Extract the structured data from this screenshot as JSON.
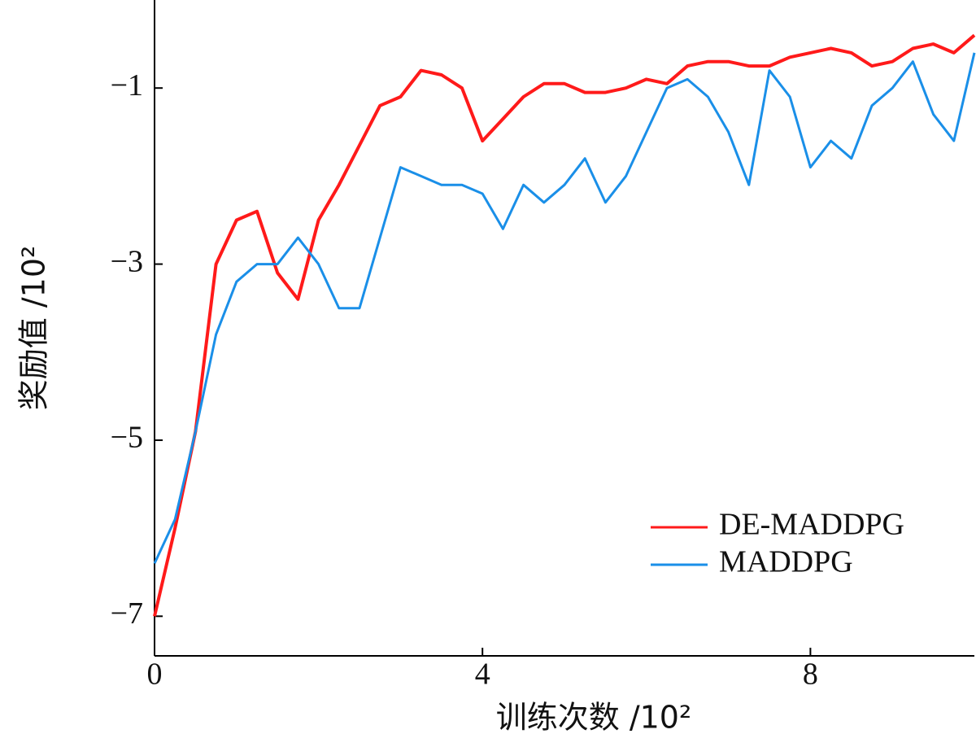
{
  "chart_data": {
    "type": "line",
    "xlabel": "训练次数 /10²",
    "ylabel": "奖励值 /10²",
    "x": [
      0,
      0.25,
      0.5,
      0.75,
      1,
      1.25,
      1.5,
      1.75,
      2,
      2.25,
      2.5,
      2.75,
      3,
      3.25,
      3.5,
      3.75,
      4,
      4.25,
      4.5,
      4.75,
      5,
      5.25,
      5.5,
      5.75,
      6,
      6.25,
      6.5,
      6.75,
      7,
      7.25,
      7.5,
      7.75,
      8,
      8.25,
      8.5,
      8.75,
      9,
      9.25,
      9.5,
      9.75,
      10
    ],
    "series": [
      {
        "name": "DE-MADDPG",
        "color": "#ff1a1a",
        "values": [
          -7.0,
          -6.0,
          -4.9,
          -3.0,
          -2.5,
          -2.4,
          -3.1,
          -3.4,
          -2.5,
          -2.1,
          -1.65,
          -1.2,
          -1.1,
          -0.8,
          -0.85,
          -1.0,
          -1.6,
          -1.35,
          -1.1,
          -0.95,
          -0.95,
          -1.05,
          -1.05,
          -1.0,
          -0.9,
          -0.95,
          -0.75,
          -0.7,
          -0.7,
          -0.75,
          -0.75,
          -0.65,
          -0.6,
          -0.55,
          -0.6,
          -0.75,
          -0.7,
          -0.55,
          -0.5,
          -0.6,
          -0.4
        ]
      },
      {
        "name": "MADDPG",
        "color": "#1a8fe8",
        "values": [
          -6.4,
          -5.9,
          -4.9,
          -3.8,
          -3.2,
          -3.0,
          -3.0,
          -2.7,
          -3.0,
          -3.5,
          -3.5,
          -2.7,
          -1.9,
          -2.0,
          -2.1,
          -2.1,
          -2.2,
          -2.6,
          -2.1,
          -2.3,
          -2.1,
          -1.8,
          -2.3,
          -2.0,
          -1.5,
          -1.0,
          -0.9,
          -1.1,
          -1.5,
          -2.1,
          -0.8,
          -1.1,
          -1.9,
          -1.6,
          -1.8,
          -1.2,
          -1.0,
          -0.7,
          -1.3,
          -1.6,
          -0.6
        ]
      }
    ],
    "xlim": [
      0,
      10
    ],
    "xticks": [
      0,
      4,
      8
    ],
    "ylim": [
      -7.45,
      0
    ],
    "yticks": [
      {
        "value": -7,
        "label": "−7"
      },
      {
        "value": -5,
        "label": "−5"
      },
      {
        "value": -3,
        "label": "−3"
      },
      {
        "value": -1,
        "label": "−1"
      }
    ],
    "legend": "lower right"
  }
}
